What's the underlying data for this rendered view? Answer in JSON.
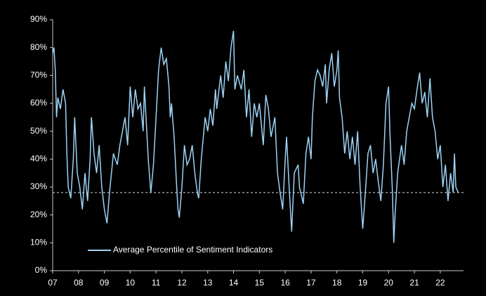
{
  "chart_data": {
    "type": "line",
    "x": [
      2007.0,
      2007.05,
      2007.1,
      2007.15,
      2007.2,
      2007.3,
      2007.4,
      2007.5,
      2007.55,
      2007.6,
      2007.7,
      2007.8,
      2007.85,
      2007.95,
      2008.05,
      2008.15,
      2008.25,
      2008.35,
      2008.45,
      2008.5,
      2008.6,
      2008.7,
      2008.8,
      2008.9,
      2009.0,
      2009.1,
      2009.2,
      2009.35,
      2009.5,
      2009.6,
      2009.8,
      2009.9,
      2010.0,
      2010.1,
      2010.2,
      2010.3,
      2010.4,
      2010.5,
      2010.55,
      2010.7,
      2010.8,
      2010.9,
      2011.0,
      2011.1,
      2011.2,
      2011.3,
      2011.4,
      2011.5,
      2011.55,
      2011.6,
      2011.7,
      2011.8,
      2011.85,
      2011.9,
      2012.0,
      2012.1,
      2012.2,
      2012.3,
      2012.4,
      2012.5,
      2012.6,
      2012.65,
      2012.75,
      2012.9,
      2013.0,
      2013.1,
      2013.2,
      2013.3,
      2013.35,
      2013.5,
      2013.6,
      2013.7,
      2013.8,
      2013.9,
      2014.0,
      2014.05,
      2014.15,
      2014.3,
      2014.4,
      2014.5,
      2014.6,
      2014.7,
      2014.8,
      2014.9,
      2015.0,
      2015.15,
      2015.25,
      2015.35,
      2015.45,
      2015.6,
      2015.7,
      2015.8,
      2015.9,
      2016.0,
      2016.05,
      2016.15,
      2016.25,
      2016.35,
      2016.5,
      2016.55,
      2016.6,
      2016.7,
      2016.8,
      2016.9,
      2017.0,
      2017.05,
      2017.15,
      2017.25,
      2017.35,
      2017.45,
      2017.55,
      2017.6,
      2017.7,
      2017.8,
      2017.9,
      2018.0,
      2018.05,
      2018.1,
      2018.2,
      2018.3,
      2018.4,
      2018.5,
      2018.6,
      2018.7,
      2018.8,
      2018.9,
      2019.0,
      2019.1,
      2019.2,
      2019.3,
      2019.4,
      2019.5,
      2019.6,
      2019.7,
      2019.8,
      2019.9,
      2020.0,
      2020.05,
      2020.15,
      2020.2,
      2020.25,
      2020.35,
      2020.5,
      2020.6,
      2020.7,
      2020.8,
      2020.9,
      2021.0,
      2021.1,
      2021.2,
      2021.3,
      2021.4,
      2021.5,
      2021.6,
      2021.7,
      2021.8,
      2021.9,
      2022.0,
      2022.1,
      2022.2,
      2022.3,
      2022.4,
      2022.5,
      2022.55,
      2022.6,
      2022.7
    ],
    "series": [
      {
        "name": "Average Percentile of Sentiment Indicators",
        "color": "#9dd3f5",
        "values": [
          78,
          80,
          72,
          55,
          62,
          58,
          65,
          60,
          42,
          30,
          26,
          40,
          55,
          35,
          30,
          22,
          35,
          25,
          40,
          55,
          42,
          35,
          45,
          30,
          22,
          17,
          28,
          42,
          38,
          45,
          55,
          45,
          66,
          55,
          65,
          58,
          60,
          50,
          66,
          40,
          28,
          38,
          55,
          72,
          80,
          74,
          76,
          66,
          55,
          60,
          48,
          30,
          22,
          19,
          30,
          45,
          38,
          40,
          45,
          35,
          28,
          26,
          40,
          55,
          50,
          58,
          52,
          65,
          58,
          70,
          62,
          75,
          68,
          80,
          86,
          65,
          70,
          65,
          72,
          55,
          65,
          48,
          60,
          55,
          60,
          45,
          63,
          58,
          48,
          55,
          35,
          28,
          22,
          40,
          48,
          30,
          14,
          35,
          38,
          30,
          28,
          24,
          42,
          48,
          40,
          55,
          68,
          72,
          70,
          66,
          74,
          60,
          72,
          78,
          66,
          72,
          79,
          62,
          55,
          42,
          50,
          40,
          48,
          38,
          50,
          30,
          15,
          28,
          42,
          45,
          35,
          40,
          32,
          25,
          38,
          60,
          66,
          50,
          28,
          10,
          20,
          35,
          45,
          38,
          50,
          55,
          60,
          58,
          65,
          71,
          60,
          64,
          55,
          69,
          55,
          50,
          40,
          45,
          30,
          38,
          25,
          35,
          28,
          42,
          30,
          28
        ]
      }
    ],
    "xlim": [
      2007.0,
      2022.9
    ],
    "xticks": [
      {
        "value": 2007,
        "label": "07"
      },
      {
        "value": 2008,
        "label": "08"
      },
      {
        "value": 2009,
        "label": "09"
      },
      {
        "value": 2010,
        "label": "10"
      },
      {
        "value": 2011,
        "label": "11"
      },
      {
        "value": 2012,
        "label": "12"
      },
      {
        "value": 2013,
        "label": "13"
      },
      {
        "value": 2014,
        "label": "14"
      },
      {
        "value": 2015,
        "label": "15"
      },
      {
        "value": 2016,
        "label": "16"
      },
      {
        "value": 2017,
        "label": "17"
      },
      {
        "value": 2018,
        "label": "18"
      },
      {
        "value": 2019,
        "label": "19"
      },
      {
        "value": 2020,
        "label": "20"
      },
      {
        "value": 2021,
        "label": "21"
      },
      {
        "value": 2022,
        "label": "22"
      }
    ],
    "ylim": [
      0,
      90
    ],
    "yticks": [
      {
        "value": 0,
        "label": "0%"
      },
      {
        "value": 10,
        "label": "10%"
      },
      {
        "value": 20,
        "label": "20%"
      },
      {
        "value": 30,
        "label": "30%"
      },
      {
        "value": 40,
        "label": "40%"
      },
      {
        "value": 50,
        "label": "50%"
      },
      {
        "value": 60,
        "label": "60%"
      },
      {
        "value": 70,
        "label": "70%"
      },
      {
        "value": 80,
        "label": "80%"
      },
      {
        "value": 90,
        "label": "90%"
      }
    ],
    "reference_line": 28,
    "legend": "lower-left"
  }
}
